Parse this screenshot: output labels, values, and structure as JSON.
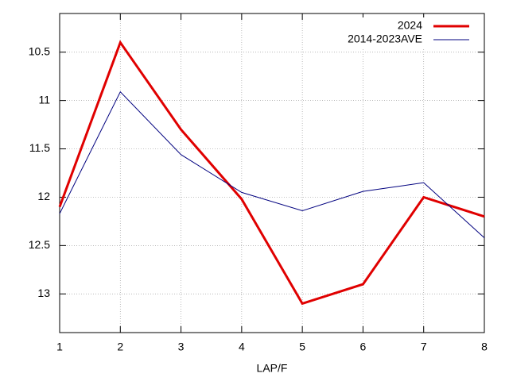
{
  "chart_data": {
    "type": "line",
    "x_label": "LAP/F",
    "x": [
      1,
      2,
      3,
      4,
      5,
      6,
      7,
      8
    ],
    "series": [
      {
        "name": "2024",
        "color": "#e00000",
        "values": [
          12.1,
          10.4,
          11.3,
          12.02,
          13.1,
          12.9,
          12.0,
          12.2
        ]
      },
      {
        "name": "2014-2023AVE",
        "color": "#00007f",
        "values": [
          12.17,
          10.91,
          11.56,
          11.95,
          12.14,
          11.94,
          11.85,
          12.42
        ]
      }
    ],
    "xlim": [
      1,
      8
    ],
    "xticks": [
      1,
      2,
      3,
      4,
      5,
      6,
      7,
      8
    ],
    "ylim": [
      10.1,
      13.4
    ],
    "y_reversed": true,
    "yticks": [
      10.5,
      11,
      11.5,
      12,
      12.5,
      13
    ],
    "grid": true,
    "legend": "top-right"
  }
}
